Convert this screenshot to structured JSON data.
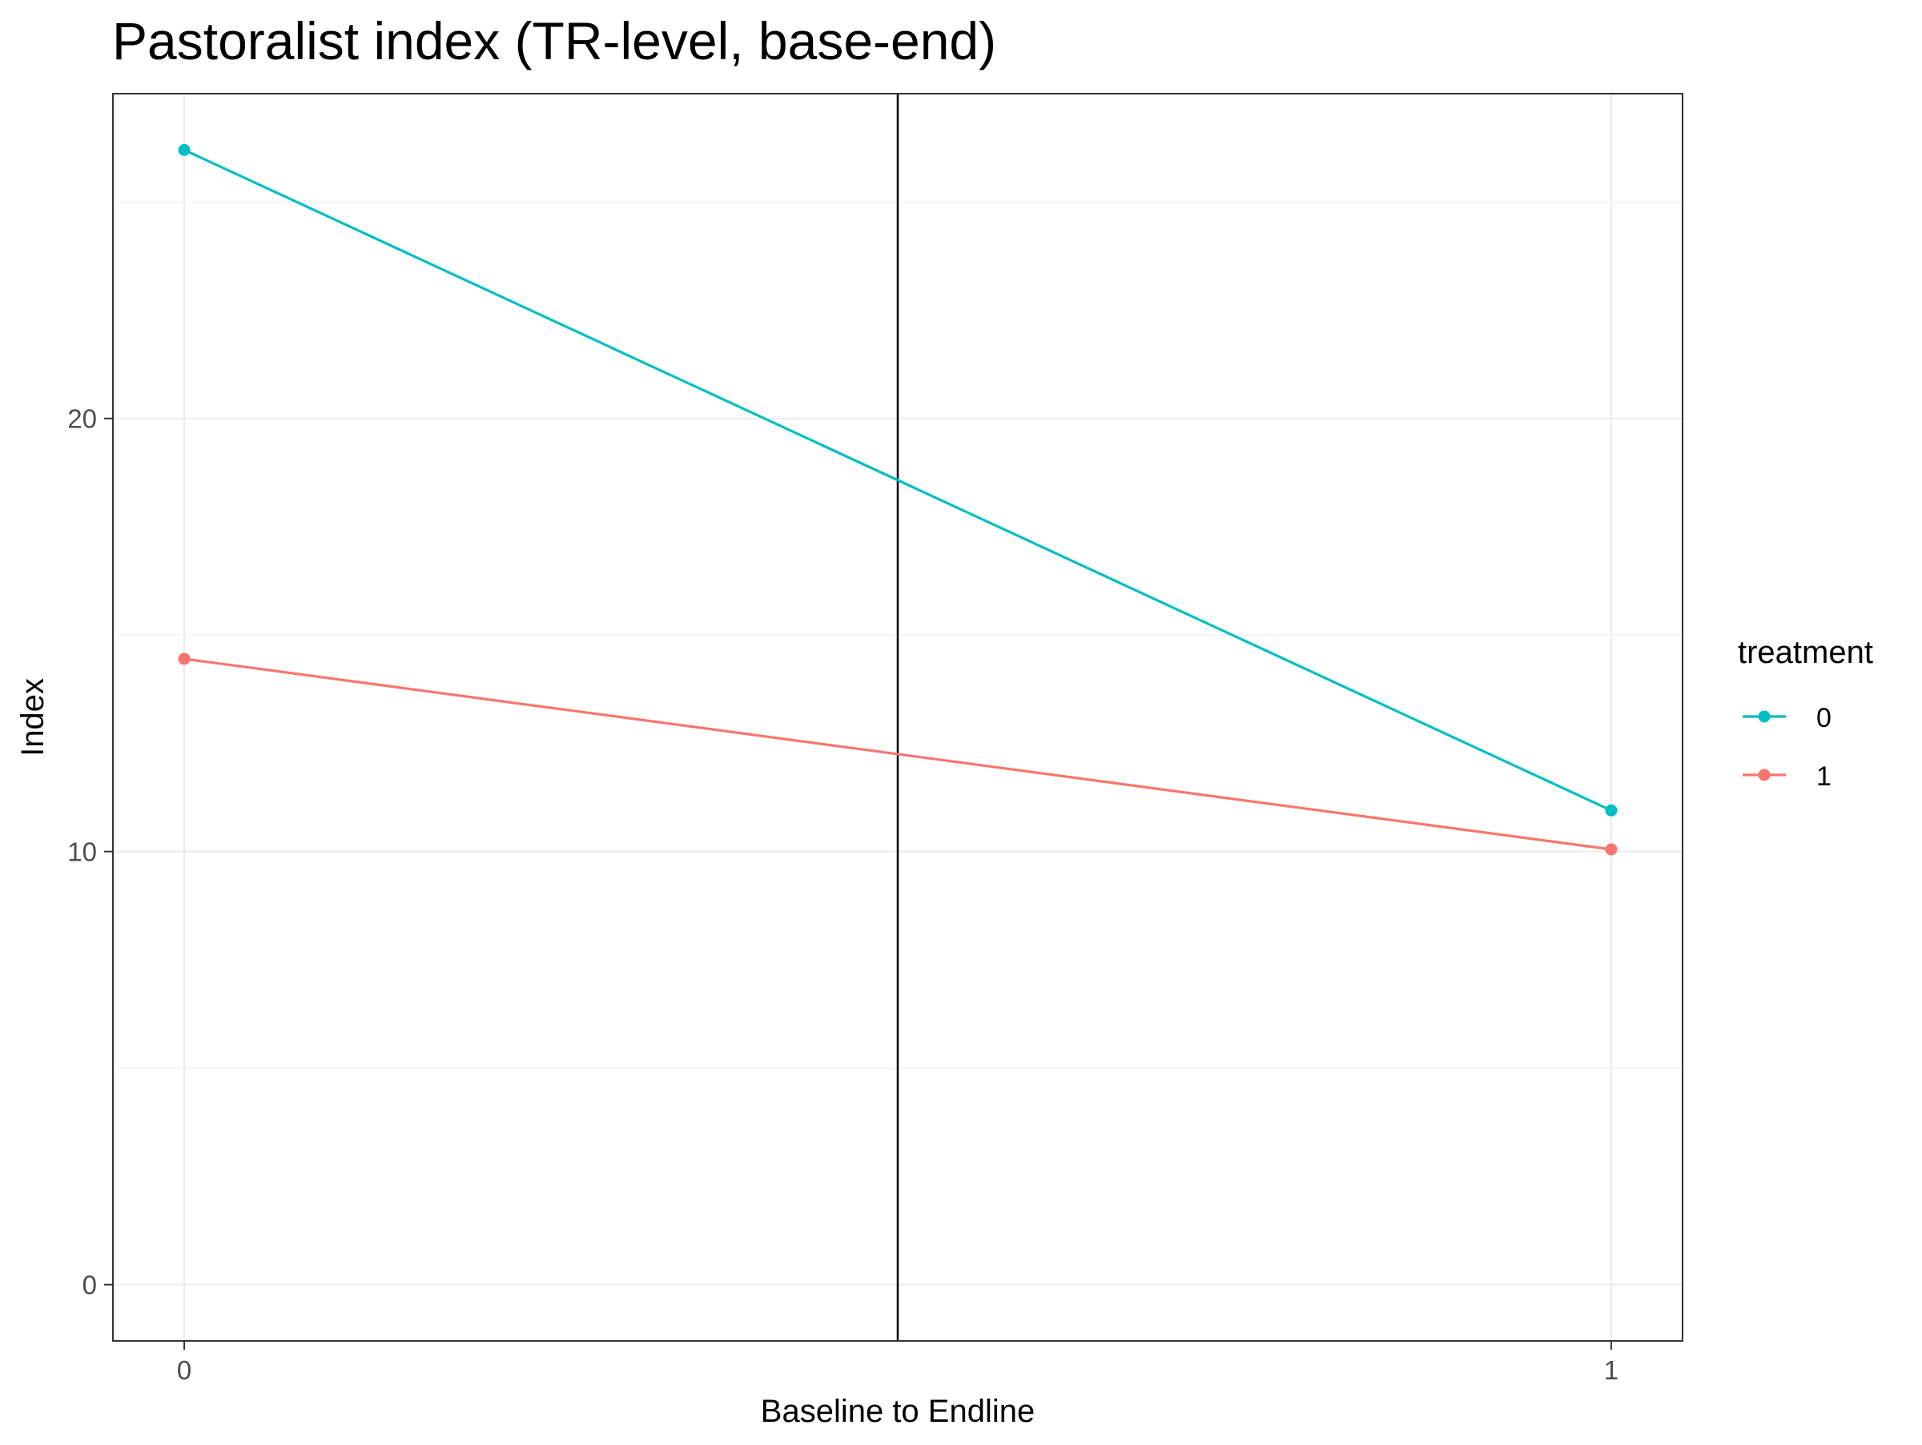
{
  "chart_data": {
    "type": "line",
    "title": "Pastoralist index (TR-level, base-end)",
    "xlabel": "Baseline to Endline",
    "ylabel": "Index",
    "x": [
      0,
      1
    ],
    "xlim": [
      -0.05,
      1.05
    ],
    "ylim": [
      -1.3,
      27.5
    ],
    "x_ticks": [
      0,
      1
    ],
    "y_ticks": [
      0,
      10,
      20
    ],
    "grid": true,
    "vline_x": 0.5,
    "legend": {
      "title": "treatment",
      "position": "right"
    },
    "series": [
      {
        "name": "0",
        "color": "#00BFC4",
        "values": [
          26.2,
          10.95
        ]
      },
      {
        "name": "1",
        "color": "#F8766D",
        "values": [
          14.45,
          10.05
        ]
      }
    ]
  }
}
